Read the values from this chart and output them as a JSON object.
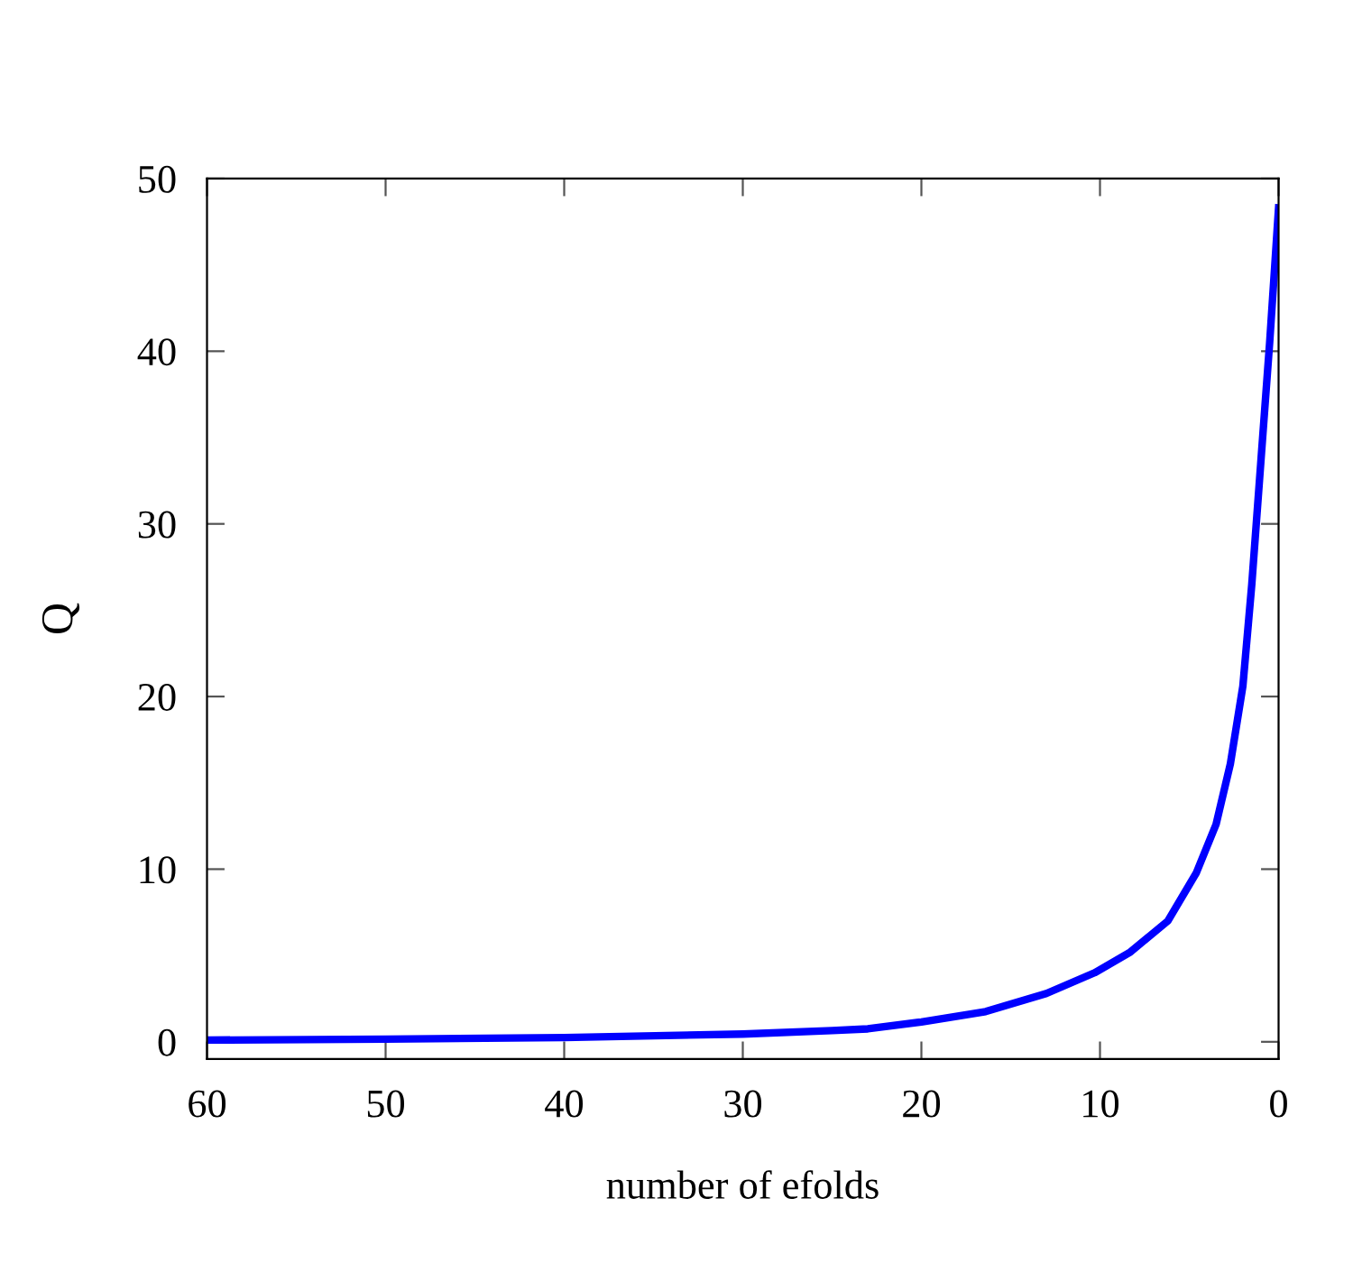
{
  "chart_data": {
    "type": "line",
    "xlabel": "number of efolds",
    "ylabel": "Q",
    "x": [
      60,
      50,
      40,
      30,
      25,
      23,
      20,
      16.4,
      13,
      10.3,
      8.3,
      6.2,
      4.6,
      3.5,
      2.7,
      2,
      1.5,
      1,
      0.5,
      0
    ],
    "series": [
      {
        "color": "#0000ff",
        "values": [
          0.1,
          0.15,
          0.25,
          0.45,
          0.65,
          0.75,
          1.15,
          1.75,
          2.8,
          4.0,
          5.2,
          7.0,
          9.8,
          12.6,
          16.1,
          20.6,
          26.5,
          33.5,
          40.5,
          48.3
        ]
      }
    ],
    "xlim": [
      60,
      0
    ],
    "ylim": [
      -1,
      50
    ],
    "xticks": [
      60,
      50,
      40,
      30,
      20,
      10,
      0
    ],
    "yticks": [
      0,
      10,
      20,
      30,
      40,
      50
    ],
    "grid": false,
    "legend": false,
    "marker": "none",
    "line_style": "solid"
  }
}
